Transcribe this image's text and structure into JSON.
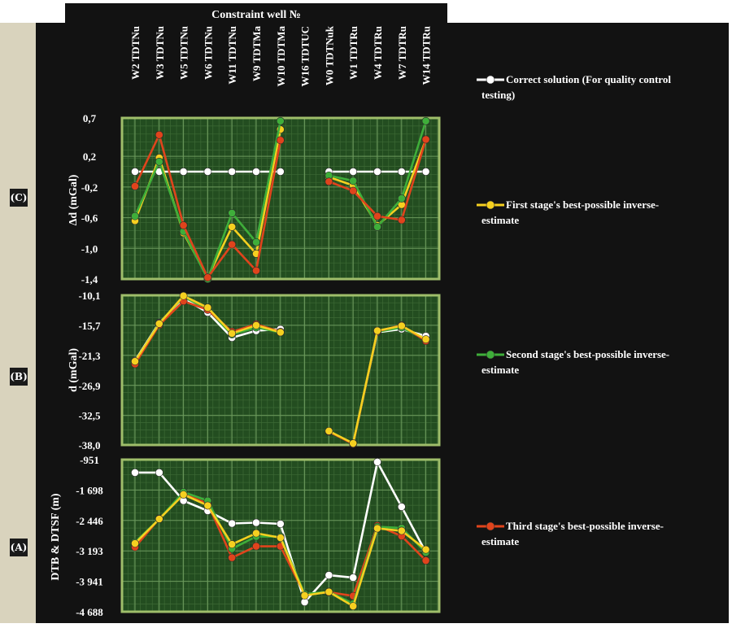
{
  "header": {
    "title": "Constraint well №"
  },
  "wells": [
    "W2 TDTNu",
    "W3 TDTNu",
    "W5 TDTNu",
    "W6 TDTNu",
    "W11 TDTNu",
    "W9 TDTMa",
    "W10 TDTMa",
    "W16 TDTUC",
    "W0 TDTNuk",
    "W1 TDTRu",
    "W4 TDTRu",
    "W7 TDTRu",
    "W14 TDTRu"
  ],
  "legend": [
    {
      "label": "Correct solution (For quality control testing)",
      "color": "#ffffff"
    },
    {
      "label": "First stage's best-possible inverse-estimate",
      "color": "#f5d020"
    },
    {
      "label": "Second stage's best-possible inverse-estimate",
      "color": "#3fae3a"
    },
    {
      "label": "Third stage's best-possible inverse-estimate",
      "color": "#e0441c"
    }
  ],
  "panels": [
    {
      "tag": "(C)",
      "ylabel": "Δd (mGal)"
    },
    {
      "tag": "(B)",
      "ylabel": "d (mGal)"
    },
    {
      "tag": "(A)",
      "ylabel": "DTB & DTSF (m)"
    }
  ],
  "chart_data": [
    {
      "type": "line",
      "panel": "C",
      "ylabel": "Δd (mGal)",
      "ylim": [
        -1.4,
        0.7
      ],
      "yticks": [
        "0,7",
        "0,2",
        "-0,2",
        "-0,6",
        "-1,0",
        "-1,4"
      ],
      "ytick_values": [
        0.7,
        0.2,
        -0.2,
        -0.6,
        -1.0,
        -1.4
      ],
      "categories": [
        "W2 TDTNu",
        "W3 TDTNu",
        "W5 TDTNu",
        "W6 TDTNu",
        "W11 TDTNu",
        "W9 TDTMa",
        "W10 TDTMa",
        "W16 TDTUC",
        "W0 TDTNuk",
        "W1 TDTRu",
        "W4 TDTRu",
        "W7 TDTRu",
        "W14 TDTRu"
      ],
      "series": [
        {
          "name": "Correct solution (For quality control testing)",
          "color": "#ffffff",
          "values": [
            0.0,
            0.0,
            0.0,
            0.0,
            0.0,
            0.0,
            0.0,
            null,
            0.0,
            0.0,
            0.0,
            0.0,
            0.0
          ]
        },
        {
          "name": "First stage's best-possible inverse-estimate",
          "color": "#f5d020",
          "values": [
            -0.64,
            0.18,
            -0.8,
            -1.38,
            -0.72,
            -1.07,
            0.55,
            null,
            -0.07,
            -0.18,
            -0.7,
            -0.43,
            0.42
          ]
        },
        {
          "name": "Second stage's best-possible inverse-estimate",
          "color": "#3fae3a",
          "values": [
            -0.58,
            0.13,
            -0.78,
            -1.4,
            -0.54,
            -0.92,
            0.66,
            null,
            -0.05,
            -0.12,
            -0.72,
            -0.35,
            0.66
          ]
        },
        {
          "name": "Third stage's best-possible inverse-estimate",
          "color": "#e0441c",
          "values": [
            -0.19,
            0.48,
            -0.7,
            -1.38,
            -0.95,
            -1.29,
            0.41,
            null,
            -0.13,
            -0.25,
            -0.58,
            -0.63,
            0.42
          ]
        }
      ]
    },
    {
      "type": "line",
      "panel": "B",
      "ylabel": "d (mGal)",
      "ylim": [
        -38.0,
        -10.1
      ],
      "yticks": [
        "-10,1",
        "-15,7",
        "-21,3",
        "-26,9",
        "-32,5",
        "-38,0"
      ],
      "ytick_values": [
        -10.1,
        -15.7,
        -21.3,
        -26.9,
        -32.5,
        -38.0
      ],
      "categories": [
        "W2 TDTNu",
        "W3 TDTNu",
        "W5 TDTNu",
        "W6 TDTNu",
        "W11 TDTNu",
        "W9 TDTMa",
        "W10 TDTMa",
        "W16 TDTUC",
        "W0 TDTNuk",
        "W1 TDTRu",
        "W4 TDTRu",
        "W7 TDTRu",
        "W14 TDTRu"
      ],
      "series": [
        {
          "name": "Correct solution (For quality control testing)",
          "color": "#ffffff",
          "values": [
            -22.3,
            -15.2,
            -10.7,
            -13.3,
            -18.0,
            -16.7,
            -16.4,
            null,
            -35.5,
            -37.7,
            -17.0,
            -16.4,
            -17.7
          ]
        },
        {
          "name": "Second stage's best-possible inverse-estimate",
          "color": "#3fae3a",
          "values": [
            -22.5,
            -15.3,
            -10.4,
            -12.7,
            -17.4,
            -16.1,
            -17.0,
            null,
            -35.5,
            -37.7,
            -16.9,
            -16.1,
            -18.4
          ]
        },
        {
          "name": "Third stage's best-possible inverse-estimate",
          "color": "#e0441c",
          "values": [
            -22.9,
            -15.6,
            -11.2,
            -12.8,
            -16.9,
            -15.5,
            -16.9,
            null,
            -35.5,
            -37.8,
            -16.8,
            -15.7,
            -18.6
          ]
        },
        {
          "name": "First stage's best-possible inverse-estimate",
          "color": "#f5d020",
          "values": [
            -22.4,
            -15.4,
            -10.2,
            -12.4,
            -17.2,
            -15.7,
            -17.0,
            null,
            -35.4,
            -37.7,
            -16.7,
            -15.8,
            -18.3
          ]
        }
      ]
    },
    {
      "type": "line",
      "panel": "A",
      "ylabel": "DTB & DTSF (m)",
      "ylim": [
        -4688,
        -951
      ],
      "yticks": [
        "-951",
        "-1 698",
        "-2 446",
        "-3 193",
        "-3 941",
        "-4 688"
      ],
      "ytick_values": [
        -951,
        -1698,
        -2446,
        -3193,
        -3941,
        -4688
      ],
      "categories": [
        "W2 TDTNu",
        "W3 TDTNu",
        "W5 TDTNu",
        "W6 TDTNu",
        "W11 TDTNu",
        "W9 TDTMa",
        "W10 TDTMa",
        "W16 TDTUC",
        "W0 TDTNuk",
        "W1 TDTRu",
        "W4 TDTRu",
        "W7 TDTRu",
        "W14 TDTRu"
      ],
      "series": [
        {
          "name": "Correct solution (For quality control testing)",
          "color": "#ffffff",
          "values": [
            -1270,
            -1270,
            -1960,
            -2210,
            -2520,
            -2500,
            -2530,
            -4450,
            -3790,
            -3850,
            -1010,
            -2110,
            -3230
          ]
        },
        {
          "name": "Third stage's best-possible inverse-estimate",
          "color": "#e0441c",
          "values": [
            -3100,
            -2400,
            -1800,
            -2030,
            -3360,
            -3080,
            -3080,
            -4260,
            -4210,
            -4300,
            -2570,
            -2830,
            -3430
          ]
        },
        {
          "name": "Second stage's best-possible inverse-estimate",
          "color": "#3fae3a",
          "values": [
            -2980,
            -2410,
            -1750,
            -1960,
            -3140,
            -2840,
            -2840,
            -4250,
            -4200,
            -4490,
            -2600,
            -2630,
            -3230
          ]
        },
        {
          "name": "First stage's best-possible inverse-estimate",
          "color": "#f5d020",
          "values": [
            -3010,
            -2410,
            -1810,
            -2080,
            -3030,
            -2760,
            -2870,
            -4290,
            -4200,
            -4550,
            -2640,
            -2700,
            -3160
          ]
        }
      ]
    }
  ]
}
